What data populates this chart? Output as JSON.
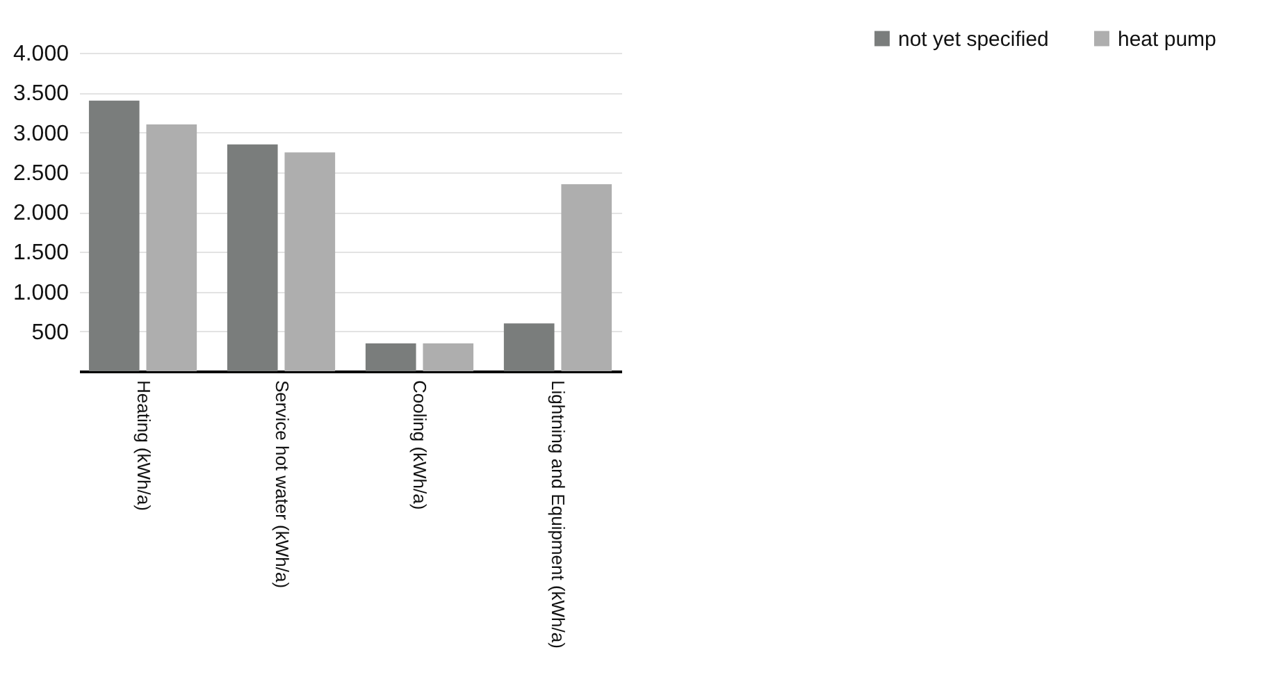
{
  "chart_data": {
    "type": "bar",
    "categories": [
      "Heating (kWh/a)",
      "Service hot water (kWh/a)",
      "Cooling (kWh/a)",
      "Lightning and Equipment (kWh/a)"
    ],
    "series": [
      {
        "name": "not yet specified",
        "color": "#7a7d7c",
        "values": [
          3400,
          2850,
          350,
          600
        ]
      },
      {
        "name": "heat pump",
        "color": "#aeaeae",
        "values": [
          3100,
          2750,
          350,
          2350
        ]
      }
    ],
    "ylim": [
      0,
      4000
    ],
    "yticks": [
      500,
      {
        "value": 1000,
        "label": "1.000"
      },
      {
        "value": 1500,
        "label": "1.500"
      },
      {
        "value": 2000,
        "label": "2.000"
      },
      {
        "value": 2500,
        "label": "2.500"
      },
      {
        "value": 3000,
        "label": "3.000"
      },
      {
        "value": 3500,
        "label": "3.500"
      },
      {
        "value": 4000,
        "label": "4.000"
      }
    ],
    "grid": "y",
    "legend": "top right"
  }
}
